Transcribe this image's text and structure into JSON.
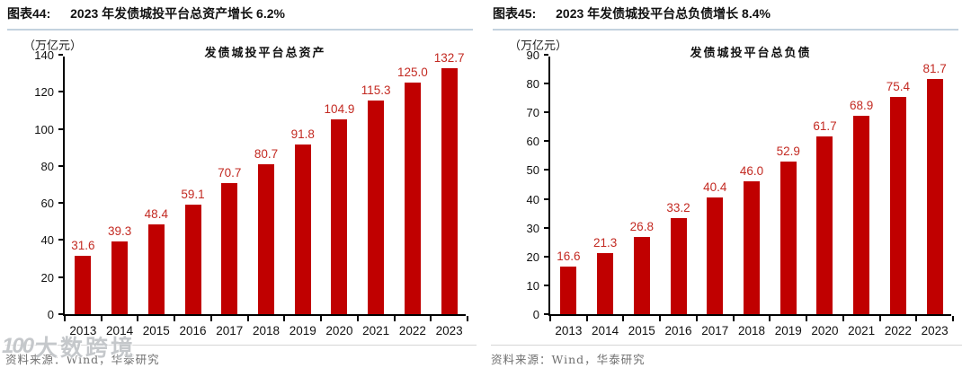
{
  "panels": [
    {
      "figure_label": "图表44:",
      "header_text": "2023 年发债城投平台总资产增长 6.2%",
      "unit": "（万亿元）",
      "source": "资料来源：Wind，华泰研究"
    },
    {
      "figure_label": "图表45:",
      "header_text": "2023 年发债城投平台总负债增长 8.4%",
      "unit": "（万亿元）",
      "source": "资料来源：Wind，华泰研究"
    }
  ],
  "chart_data": [
    {
      "type": "bar",
      "title": "发债城投平台总资产",
      "categories": [
        "2013",
        "2014",
        "2015",
        "2016",
        "2017",
        "2018",
        "2019",
        "2020",
        "2021",
        "2022",
        "2023"
      ],
      "values": [
        31.6,
        39.3,
        48.4,
        59.1,
        70.7,
        80.7,
        91.8,
        104.9,
        115.3,
        125.0,
        132.7
      ],
      "xlabel": "",
      "ylabel": "（万亿元）",
      "ylim": [
        0,
        140
      ],
      "ytick_step": 20,
      "grid": false,
      "legend": "none",
      "bar_color": "#C00000",
      "value_label_color": "#C32A22"
    },
    {
      "type": "bar",
      "title": "发债城投平台总负债",
      "categories": [
        "2013",
        "2014",
        "2015",
        "2016",
        "2017",
        "2018",
        "2019",
        "2020",
        "2021",
        "2022",
        "2023"
      ],
      "values": [
        16.6,
        21.3,
        26.8,
        33.2,
        40.4,
        46.0,
        52.9,
        61.7,
        68.9,
        75.4,
        81.7
      ],
      "xlabel": "",
      "ylabel": "（万亿元）",
      "ylim": [
        0,
        90
      ],
      "ytick_step": 10,
      "grid": false,
      "legend": "none",
      "bar_color": "#C00000",
      "value_label_color": "#C32A22"
    }
  ],
  "watermark": {
    "logo": "100",
    "text": "大数跨境"
  }
}
